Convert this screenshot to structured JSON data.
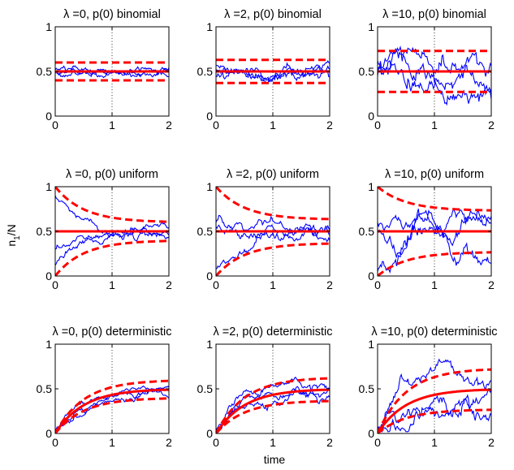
{
  "figure": {
    "ylabel": "n",
    "ylabel_sub": "1",
    "ylabel_tail": "/N",
    "xlabel": "time"
  },
  "colors": {
    "trajectory": "#0000ff",
    "bounds": "#ff0000",
    "mean": "#ff0000",
    "axes": "#000000",
    "vertical_ref": "#000000"
  },
  "chart_data": [
    {
      "type": "line",
      "lambda": 0,
      "init": "binomial",
      "title_lambda": "λ =0,",
      "title_init": "p(0) binomial",
      "xlim": [
        0,
        2
      ],
      "ylim": [
        0,
        1
      ],
      "xticks": [
        "0",
        "1",
        "2"
      ],
      "yticks": [
        "0",
        "0.5",
        "1"
      ],
      "mean": 0.5,
      "bound_start": [
        0.4,
        0.6
      ],
      "bound_end": [
        0.4,
        0.6
      ],
      "trajectory_start": [
        0.48,
        0.5,
        0.52
      ],
      "noise": 0.022,
      "n_trajectories": 3
    },
    {
      "type": "line",
      "lambda": 2,
      "init": "binomial",
      "title_lambda": "λ =2,",
      "title_init": "p(0) binomial",
      "xlim": [
        0,
        2
      ],
      "ylim": [
        0,
        1
      ],
      "xticks": [
        "0",
        "1",
        "2"
      ],
      "yticks": [
        "0",
        "0.5",
        "1"
      ],
      "mean": 0.5,
      "bound_start": [
        0.37,
        0.63
      ],
      "bound_end": [
        0.37,
        0.63
      ],
      "trajectory_start": [
        0.45,
        0.52,
        0.57
      ],
      "noise": 0.035,
      "n_trajectories": 3
    },
    {
      "type": "line",
      "lambda": 10,
      "init": "binomial",
      "title_lambda": "λ =10,",
      "title_init": "p(0) binomial",
      "xlim": [
        0,
        2
      ],
      "ylim": [
        0,
        1
      ],
      "xticks": [
        "0",
        "1",
        "2"
      ],
      "yticks": [
        "0",
        "0.5",
        "1"
      ],
      "mean": 0.5,
      "bound_start": [
        0.27,
        0.73
      ],
      "bound_end": [
        0.27,
        0.73
      ],
      "trajectory_start": [
        0.55,
        0.45,
        0.62
      ],
      "noise": 0.07,
      "n_trajectories": 3
    },
    {
      "type": "line",
      "lambda": 0,
      "init": "uniform",
      "title_lambda": "λ =0,",
      "title_init": "p(0) uniform",
      "xlim": [
        0,
        2
      ],
      "ylim": [
        0,
        1
      ],
      "xticks": [
        "0",
        "1",
        "2"
      ],
      "yticks": [
        "0",
        "0.5",
        "1"
      ],
      "mean": 0.5,
      "bound_start": [
        0.0,
        1.0
      ],
      "bound_end": [
        0.4,
        0.6
      ],
      "trajectory_start": [
        0.9,
        0.12,
        0.3
      ],
      "noise": 0.025,
      "n_trajectories": 3
    },
    {
      "type": "line",
      "lambda": 2,
      "init": "uniform",
      "title_lambda": "λ =2,",
      "title_init": "p(0) uniform",
      "xlim": [
        0,
        2
      ],
      "ylim": [
        0,
        1
      ],
      "xticks": [
        "0",
        "1",
        "2"
      ],
      "yticks": [
        "0",
        "0.5",
        "1"
      ],
      "mean": 0.5,
      "bound_start": [
        0.0,
        1.0
      ],
      "bound_end": [
        0.37,
        0.63
      ],
      "trajectory_start": [
        0.6,
        0.08,
        0.55
      ],
      "noise": 0.035,
      "n_trajectories": 3
    },
    {
      "type": "line",
      "lambda": 10,
      "init": "uniform",
      "title_lambda": "λ =10,",
      "title_init": "p(0) uniform",
      "xlim": [
        0,
        2
      ],
      "ylim": [
        0,
        1
      ],
      "xticks": [
        "0",
        "1",
        "2"
      ],
      "yticks": [
        "0",
        "0.5",
        "1"
      ],
      "mean": 0.5,
      "bound_start": [
        0.0,
        1.0
      ],
      "bound_end": [
        0.27,
        0.73
      ],
      "trajectory_start": [
        0.52,
        0.05,
        0.6
      ],
      "noise": 0.055,
      "n_trajectories": 3
    },
    {
      "type": "line",
      "lambda": 0,
      "init": "deterministic",
      "title_lambda": "λ =0,",
      "title_init": "p(0) deterministic",
      "xlim": [
        0,
        2
      ],
      "ylim": [
        0,
        1
      ],
      "xticks": [
        "0",
        "1",
        "2"
      ],
      "yticks": [
        "0",
        "0.5",
        "1"
      ],
      "mean": 0.5,
      "mean_start": 0.0,
      "bound_start": [
        0.0,
        0.0
      ],
      "bound_end": [
        0.4,
        0.6
      ],
      "trajectory_start": [
        0.02,
        0.04,
        0.0
      ],
      "noise": 0.02,
      "n_trajectories": 3
    },
    {
      "type": "line",
      "lambda": 2,
      "init": "deterministic",
      "title_lambda": "λ =2,",
      "title_init": "p(0) deterministic",
      "xlim": [
        0,
        2
      ],
      "ylim": [
        0,
        1
      ],
      "xticks": [
        "0",
        "1",
        "2"
      ],
      "yticks": [
        "0",
        "0.5",
        "1"
      ],
      "mean": 0.5,
      "mean_start": 0.0,
      "bound_start": [
        0.0,
        0.0
      ],
      "bound_end": [
        0.37,
        0.63
      ],
      "trajectory_start": [
        0.02,
        0.04,
        0.0
      ],
      "noise": 0.03,
      "n_trajectories": 3
    },
    {
      "type": "line",
      "lambda": 10,
      "init": "deterministic",
      "title_lambda": "λ =10,",
      "title_init": "p(0) deterministic",
      "xlim": [
        0,
        2
      ],
      "ylim": [
        0,
        1
      ],
      "xticks": [
        "0",
        "1",
        "2"
      ],
      "yticks": [
        "0",
        "0.5",
        "1"
      ],
      "mean": 0.5,
      "mean_start": 0.0,
      "bound_start": [
        0.0,
        0.0
      ],
      "bound_end": [
        0.27,
        0.73
      ],
      "trajectory_start": [
        0.02,
        0.04,
        0.0
      ],
      "noise": 0.05,
      "n_trajectories": 3
    }
  ]
}
